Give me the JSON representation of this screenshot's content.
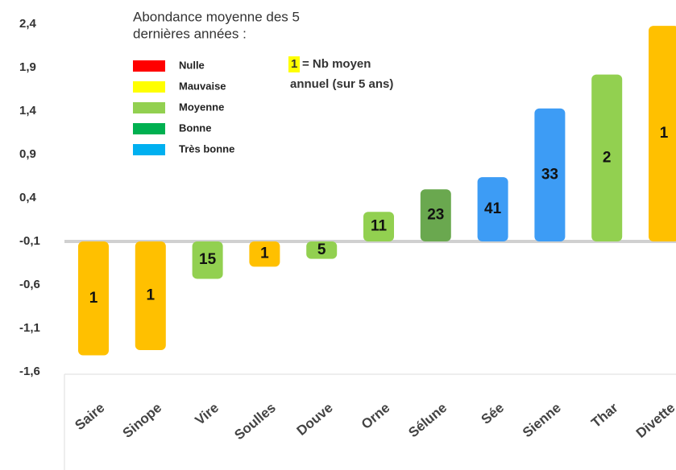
{
  "chart_data": {
    "type": "bar",
    "title": [
      "Abondance moyenne des 5",
      "dernières années :"
    ],
    "categories": [
      "Saire",
      "Sinope",
      "Vire",
      "Soulles",
      "Douve",
      "Orne",
      "Sélune",
      "Sée",
      "Sienne",
      "Thar",
      "Divette"
    ],
    "values": [
      -1.41,
      -1.35,
      -0.53,
      -0.39,
      -0.3,
      0.24,
      0.5,
      0.64,
      1.43,
      1.82,
      2.38
    ],
    "value_labels": [
      "1",
      "1",
      "15",
      "1",
      "5",
      "11",
      "23",
      "41",
      "33",
      "2",
      "1"
    ],
    "colors": [
      "#ffc000",
      "#ffc000",
      "#92d050",
      "#ffc000",
      "#92d050",
      "#92d050",
      "#6aa84f",
      "#3d9cf5",
      "#3d9cf5",
      "#92d050",
      "#ffc000"
    ],
    "ylim": [
      -1.6,
      2.4
    ],
    "yticks": [
      {
        "value": 2.4,
        "label": "2,4"
      },
      {
        "value": 1.9,
        "label": "1,9"
      },
      {
        "value": 1.4,
        "label": "1,4"
      },
      {
        "value": 0.9,
        "label": "0,9"
      },
      {
        "value": 0.4,
        "label": "0,4"
      },
      {
        "value": -0.1,
        "label": "-0,1"
      },
      {
        "value": -0.6,
        "label": "-0,6"
      },
      {
        "value": -1.1,
        "label": "-1,1"
      },
      {
        "value": -1.6,
        "label": "-1,6"
      }
    ],
    "baseline": -0.1,
    "legend": [
      {
        "name": "Nulle",
        "color": "#ff0000"
      },
      {
        "name": "Mauvaise",
        "color": "#ffff00"
      },
      {
        "name": "Moyenne",
        "color": "#92d050"
      },
      {
        "name": "Bonne",
        "color": "#00b050"
      },
      {
        "name": "Très bonne",
        "color": "#00b0f0"
      }
    ],
    "note": {
      "key": "1",
      "lines": [
        "= Nb moyen",
        "annuel (sur 5 ans)"
      ]
    }
  }
}
